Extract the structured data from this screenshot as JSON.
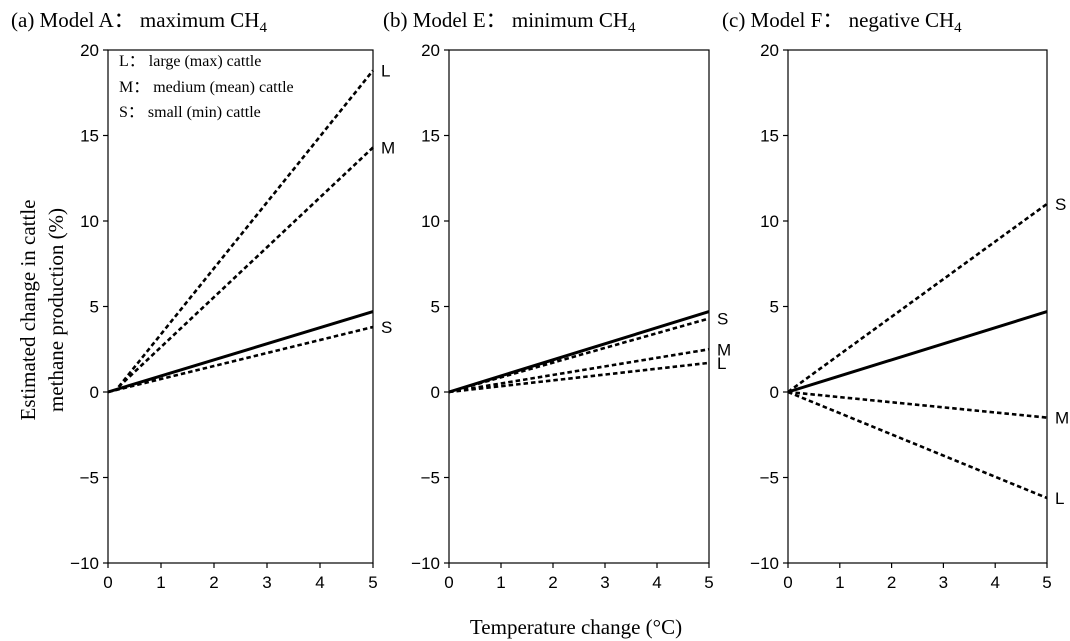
{
  "ylabel_line1": "Estimated change in cattle",
  "ylabel_line2": "methane production (%)",
  "xlabel": "Temperature change (°C)",
  "legend": [
    "L： large (max) cattle",
    "M： medium (mean) cattle",
    "S： small (min) cattle"
  ],
  "panels": [
    {
      "title": "(a) Model A： maximum CH",
      "sub": "4"
    },
    {
      "title": "(b) Model E： minimum CH",
      "sub": "4"
    },
    {
      "title": "(c) Model F： negative CH",
      "sub": "4"
    }
  ],
  "chart_data": [
    {
      "type": "line",
      "title": "(a) Model A： maximum CH4",
      "xlim": [
        0,
        5
      ],
      "ylim": [
        -10,
        20
      ],
      "xticks": [
        0,
        1,
        2,
        3,
        4,
        5
      ],
      "yticks": [
        -10,
        -5,
        0,
        5,
        10,
        15,
        20
      ],
      "ytick_labels": [
        "−10",
        "−5",
        "0",
        "5",
        "10",
        "15",
        "20"
      ],
      "series": [
        {
          "style": "solid",
          "x": [
            0,
            5
          ],
          "y": [
            0,
            4.7
          ]
        },
        {
          "name": "L",
          "style": "dotted",
          "x": [
            0.2,
            5
          ],
          "y": [
            0.3,
            18.8
          ]
        },
        {
          "name": "M",
          "style": "dotted",
          "x": [
            0.2,
            5
          ],
          "y": [
            0.3,
            14.3
          ]
        },
        {
          "name": "S",
          "style": "dotted",
          "x": [
            0,
            5
          ],
          "y": [
            0,
            3.8
          ]
        }
      ]
    },
    {
      "type": "line",
      "title": "(b) Model E： minimum CH4",
      "xlim": [
        0,
        5
      ],
      "ylim": [
        -10,
        20
      ],
      "xticks": [
        0,
        1,
        2,
        3,
        4,
        5
      ],
      "yticks": [
        -10,
        -5,
        0,
        5,
        10,
        15,
        20
      ],
      "ytick_labels": [
        "−10",
        "−5",
        "0",
        "5",
        "10",
        "15",
        "20"
      ],
      "series": [
        {
          "style": "solid",
          "x": [
            0,
            5
          ],
          "y": [
            0,
            4.7
          ]
        },
        {
          "name": "S",
          "style": "dotted",
          "x": [
            0,
            5
          ],
          "y": [
            0,
            4.3
          ]
        },
        {
          "name": "M",
          "style": "dotted",
          "x": [
            0,
            5
          ],
          "y": [
            0,
            2.5
          ]
        },
        {
          "name": "L",
          "style": "dotted",
          "x": [
            0,
            5
          ],
          "y": [
            0,
            1.7
          ]
        }
      ]
    },
    {
      "type": "line",
      "title": "(c) Model F： negative CH4",
      "xlim": [
        0,
        5
      ],
      "ylim": [
        -10,
        20
      ],
      "xticks": [
        0,
        1,
        2,
        3,
        4,
        5
      ],
      "yticks": [
        -10,
        -5,
        0,
        5,
        10,
        15,
        20
      ],
      "ytick_labels": [
        "−10",
        "−5",
        "0",
        "5",
        "10",
        "15",
        "20"
      ],
      "series": [
        {
          "style": "solid",
          "x": [
            0,
            5
          ],
          "y": [
            0,
            4.7
          ]
        },
        {
          "name": "S",
          "style": "dotted",
          "x": [
            0,
            5
          ],
          "y": [
            0,
            11.0
          ]
        },
        {
          "name": "M",
          "style": "dotted",
          "x": [
            0,
            5
          ],
          "y": [
            0,
            -1.5
          ]
        },
        {
          "name": "L",
          "style": "dotted",
          "x": [
            0,
            5
          ],
          "y": [
            0,
            -6.2
          ]
        }
      ]
    }
  ]
}
